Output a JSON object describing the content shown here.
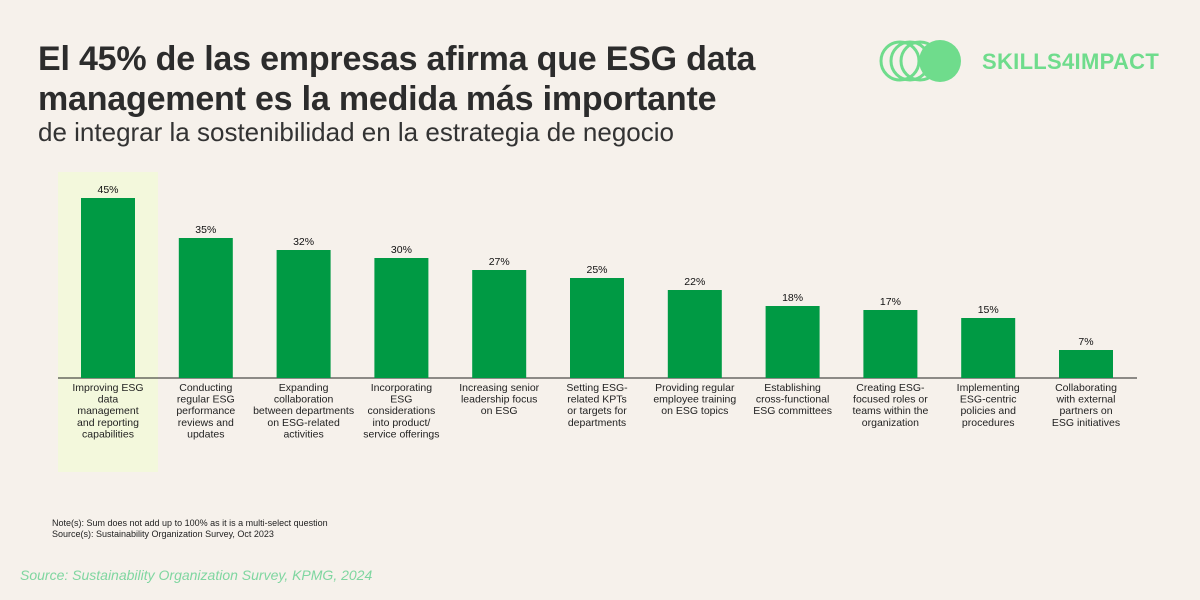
{
  "header": {
    "title_line1": "El 45% de las empresas afirma que ESG data",
    "title_line2": "management es la medida más importante",
    "subtitle": "de integrar la sostenibilidad en la estrategia de negocio"
  },
  "brand": {
    "name": "SKILLS4IMPACT",
    "color": "#6fdc8c"
  },
  "chart_data": {
    "type": "bar",
    "title": "",
    "xlabel": "",
    "ylabel": "",
    "ylim": [
      0,
      50
    ],
    "value_suffix": "%",
    "highlight_index": 0,
    "bar_color": "#009a44",
    "highlight_color": "#f3f8dc",
    "categories": [
      [
        "Improving ESG",
        "data",
        "management",
        "and reporting",
        "capabilities"
      ],
      [
        "Conducting",
        "regular ESG",
        "performance",
        "reviews and",
        "updates"
      ],
      [
        "Expanding",
        "collaboration",
        "between departments",
        "on ESG-related",
        "activities"
      ],
      [
        "Incorporating",
        "ESG",
        "considerations",
        "into product/",
        "service offerings"
      ],
      [
        "Increasing senior",
        "leadership focus",
        "on ESG"
      ],
      [
        "Setting ESG-",
        "related KPTs",
        "or targets for",
        "departments"
      ],
      [
        "Providing regular",
        "employee training",
        "on ESG topics"
      ],
      [
        "Establishing",
        "cross-functional",
        "ESG committees"
      ],
      [
        "Creating ESG-",
        "focused roles or",
        "teams within the",
        "organization"
      ],
      [
        "Implementing",
        "ESG-centric",
        "policies and",
        "procedures"
      ],
      [
        "Collaborating",
        "with external",
        "partners on",
        "ESG initiatives"
      ]
    ],
    "values": [
      45,
      35,
      32,
      30,
      27,
      25,
      22,
      18,
      17,
      15,
      7
    ]
  },
  "notes": {
    "note": "Note(s): Sum does not add up to 100% as it is a multi-select question",
    "source_inner": "Source(s): Sustainability Organization Survey, Oct 2023"
  },
  "footer": {
    "source": "Source: Sustainability Organization Survey, KPMG, 2024"
  }
}
